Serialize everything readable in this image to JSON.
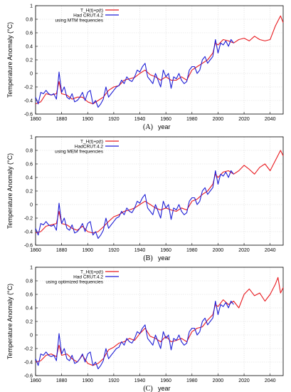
{
  "figure": {
    "panels": [
      {
        "panel_label": "(A)",
        "xlabel": "year",
        "ylabel": "Temperature Anomaly (°C)",
        "legend": {
          "red": "T_H(t)+p(t)",
          "blue": "Had CRUT.4.2",
          "note": "using MTM frequencies"
        }
      },
      {
        "panel_label": "(B)",
        "xlabel": "year",
        "ylabel": "Temperature Anomaly (°C)",
        "legend": {
          "red": "T_H(t)+p(t)",
          "blue": "HadCRUT.4.2",
          "note": "using MEM frequencies"
        }
      },
      {
        "panel_label": "(C)",
        "xlabel": "year",
        "ylabel": "Temperature Anomaly (°C)",
        "legend": {
          "red": "T_H(t)+p(t)",
          "blue": "Had CRUT.4.2",
          "note": "using optimized frequencies"
        }
      }
    ]
  },
  "chart_data": [
    {
      "type": "line",
      "xlabel": "year",
      "ylabel": "Temperature Anomaly (°C)",
      "xlim": [
        1860,
        2050
      ],
      "ylim": [
        -0.6,
        1.0
      ],
      "x_ticks": [
        "1860",
        "1880",
        "1900",
        "1920",
        "1940",
        "1960",
        "1980",
        "2000",
        "2020",
        "2040"
      ],
      "y_ticks": [
        "-0.6",
        "-0.4",
        "-0.2",
        "0",
        "0.2",
        "0.4",
        "0.6",
        "0.8",
        "1"
      ],
      "grid": true,
      "legend_position": "top-left",
      "series": [
        {
          "name": "T_H(t)+p(t)",
          "color": "#e8191e",
          "x": [
            1860,
            1864,
            1868,
            1872,
            1876,
            1878,
            1880,
            1884,
            1888,
            1892,
            1896,
            1900,
            1904,
            1908,
            1912,
            1916,
            1920,
            1924,
            1928,
            1932,
            1936,
            1940,
            1944,
            1948,
            1952,
            1956,
            1960,
            1964,
            1968,
            1972,
            1976,
            1980,
            1984,
            1988,
            1992,
            1996,
            1998,
            2000,
            2004,
            2008,
            2012,
            2016,
            2020,
            2024,
            2028,
            2032,
            2036,
            2040,
            2044,
            2048,
            2050
          ],
          "values": [
            -0.45,
            -0.42,
            -0.3,
            -0.32,
            -0.3,
            -0.12,
            -0.3,
            -0.32,
            -0.38,
            -0.35,
            -0.35,
            -0.42,
            -0.45,
            -0.4,
            -0.35,
            -0.25,
            -0.2,
            -0.18,
            -0.1,
            -0.08,
            -0.06,
            0.0,
            0.05,
            -0.02,
            -0.05,
            -0.1,
            -0.05,
            -0.1,
            -0.1,
            -0.05,
            -0.1,
            0.05,
            0.1,
            0.15,
            0.2,
            0.3,
            0.45,
            0.42,
            0.5,
            0.48,
            0.45,
            0.5,
            0.52,
            0.48,
            0.55,
            0.5,
            0.48,
            0.5,
            0.7,
            0.85,
            0.75
          ]
        },
        {
          "name": "Had CRUT.4.2",
          "color": "#1f1fd6",
          "x": [
            1860,
            1862,
            1864,
            1866,
            1868,
            1870,
            1872,
            1874,
            1876,
            1878,
            1880,
            1882,
            1884,
            1886,
            1888,
            1890,
            1892,
            1894,
            1896,
            1898,
            1900,
            1902,
            1904,
            1906,
            1908,
            1910,
            1912,
            1914,
            1916,
            1918,
            1920,
            1922,
            1924,
            1926,
            1928,
            1930,
            1932,
            1934,
            1936,
            1938,
            1940,
            1942,
            1944,
            1946,
            1948,
            1950,
            1952,
            1954,
            1956,
            1958,
            1960,
            1962,
            1964,
            1966,
            1968,
            1970,
            1972,
            1974,
            1976,
            1978,
            1980,
            1982,
            1984,
            1986,
            1988,
            1990,
            1992,
            1994,
            1996,
            1998,
            2000,
            2002,
            2004,
            2006,
            2008,
            2010,
            2012
          ],
          "values": [
            -0.35,
            -0.45,
            -0.28,
            -0.3,
            -0.25,
            -0.3,
            -0.32,
            -0.3,
            -0.38,
            0.02,
            -0.28,
            -0.2,
            -0.35,
            -0.38,
            -0.3,
            -0.42,
            -0.4,
            -0.35,
            -0.28,
            -0.4,
            -0.28,
            -0.25,
            -0.45,
            -0.4,
            -0.5,
            -0.45,
            -0.38,
            -0.2,
            -0.35,
            -0.3,
            -0.25,
            -0.2,
            -0.18,
            -0.1,
            -0.15,
            -0.05,
            -0.1,
            -0.12,
            -0.05,
            0.05,
            0.02,
            0.1,
            0.15,
            -0.05,
            -0.1,
            -0.15,
            0.0,
            -0.1,
            -0.2,
            0.05,
            -0.05,
            0.0,
            -0.22,
            -0.05,
            -0.08,
            0.0,
            -0.1,
            -0.15,
            -0.12,
            0.05,
            0.1,
            0.1,
            0.0,
            0.05,
            0.2,
            0.25,
            0.15,
            0.2,
            0.25,
            0.5,
            0.3,
            0.45,
            0.42,
            0.48,
            0.4,
            0.5,
            0.45
          ]
        }
      ]
    },
    {
      "type": "line",
      "xlabel": "year",
      "ylabel": "Temperature Anomaly (°C)",
      "xlim": [
        1860,
        2050
      ],
      "ylim": [
        -0.6,
        1.0
      ],
      "x_ticks": [
        "1860",
        "1880",
        "1900",
        "1920",
        "1940",
        "1960",
        "1980",
        "2000",
        "2020",
        "2040"
      ],
      "y_ticks": [
        "-0.6",
        "-0.4",
        "-0.2",
        "0",
        "0.2",
        "0.4",
        "0.6",
        "0.8",
        "1"
      ],
      "grid": true,
      "legend_position": "top-left",
      "series": [
        {
          "name": "T_H(t)+p(t)",
          "color": "#e8191e",
          "x": [
            1860,
            1864,
            1868,
            1872,
            1876,
            1878,
            1880,
            1884,
            1888,
            1892,
            1896,
            1900,
            1904,
            1908,
            1912,
            1916,
            1920,
            1924,
            1928,
            1932,
            1936,
            1940,
            1944,
            1948,
            1952,
            1956,
            1960,
            1964,
            1968,
            1972,
            1976,
            1980,
            1984,
            1988,
            1992,
            1996,
            1998,
            2000,
            2004,
            2008,
            2012,
            2016,
            2020,
            2024,
            2028,
            2032,
            2036,
            2040,
            2044,
            2048,
            2050
          ],
          "values": [
            -0.42,
            -0.4,
            -0.32,
            -0.3,
            -0.28,
            -0.1,
            -0.28,
            -0.3,
            -0.35,
            -0.38,
            -0.32,
            -0.4,
            -0.42,
            -0.4,
            -0.33,
            -0.25,
            -0.18,
            -0.15,
            -0.1,
            -0.08,
            -0.05,
            0.0,
            0.05,
            0.0,
            -0.05,
            -0.08,
            -0.05,
            -0.08,
            -0.1,
            -0.05,
            -0.08,
            0.05,
            0.08,
            0.15,
            0.2,
            0.3,
            0.45,
            0.4,
            0.48,
            0.5,
            0.45,
            0.5,
            0.58,
            0.52,
            0.45,
            0.55,
            0.6,
            0.5,
            0.65,
            0.8,
            0.72
          ]
        },
        {
          "name": "HadCRUT.4.2",
          "color": "#1f1fd6",
          "x": [
            1860,
            1862,
            1864,
            1866,
            1868,
            1870,
            1872,
            1874,
            1876,
            1878,
            1880,
            1882,
            1884,
            1886,
            1888,
            1890,
            1892,
            1894,
            1896,
            1898,
            1900,
            1902,
            1904,
            1906,
            1908,
            1910,
            1912,
            1914,
            1916,
            1918,
            1920,
            1922,
            1924,
            1926,
            1928,
            1930,
            1932,
            1934,
            1936,
            1938,
            1940,
            1942,
            1944,
            1946,
            1948,
            1950,
            1952,
            1954,
            1956,
            1958,
            1960,
            1962,
            1964,
            1966,
            1968,
            1970,
            1972,
            1974,
            1976,
            1978,
            1980,
            1982,
            1984,
            1986,
            1988,
            1990,
            1992,
            1994,
            1996,
            1998,
            2000,
            2002,
            2004,
            2006,
            2008,
            2010,
            2012
          ],
          "values": [
            -0.35,
            -0.45,
            -0.28,
            -0.3,
            -0.25,
            -0.3,
            -0.32,
            -0.3,
            -0.38,
            0.02,
            -0.28,
            -0.2,
            -0.35,
            -0.38,
            -0.3,
            -0.42,
            -0.4,
            -0.35,
            -0.28,
            -0.4,
            -0.28,
            -0.25,
            -0.45,
            -0.4,
            -0.5,
            -0.45,
            -0.38,
            -0.2,
            -0.35,
            -0.3,
            -0.25,
            -0.2,
            -0.18,
            -0.1,
            -0.15,
            -0.05,
            -0.1,
            -0.12,
            -0.05,
            0.05,
            0.02,
            0.1,
            0.15,
            -0.05,
            -0.1,
            -0.15,
            0.0,
            -0.1,
            -0.2,
            0.05,
            -0.05,
            0.0,
            -0.22,
            -0.05,
            -0.08,
            0.0,
            -0.1,
            -0.15,
            -0.12,
            0.05,
            0.1,
            0.1,
            0.0,
            0.05,
            0.2,
            0.25,
            0.15,
            0.2,
            0.25,
            0.5,
            0.3,
            0.45,
            0.42,
            0.48,
            0.4,
            0.5,
            0.45
          ]
        }
      ]
    },
    {
      "type": "line",
      "xlabel": "year",
      "ylabel": "Temperature Anomaly (°C)",
      "xlim": [
        1860,
        2050
      ],
      "ylim": [
        -0.6,
        1.0
      ],
      "x_ticks": [
        "1860",
        "1880",
        "1900",
        "1920",
        "1940",
        "1960",
        "1980",
        "2000",
        "2020",
        "2040"
      ],
      "y_ticks": [
        "-0.6",
        "-0.4",
        "-0.2",
        "0",
        "0.2",
        "0.4",
        "0.6",
        "0.8",
        "1"
      ],
      "grid": true,
      "legend_position": "top-left",
      "series": [
        {
          "name": "T_H(t)+p(t)",
          "color": "#e8191e",
          "x": [
            1860,
            1864,
            1868,
            1872,
            1876,
            1878,
            1880,
            1884,
            1888,
            1892,
            1896,
            1900,
            1904,
            1908,
            1912,
            1916,
            1920,
            1924,
            1928,
            1932,
            1936,
            1940,
            1944,
            1948,
            1952,
            1956,
            1960,
            1964,
            1968,
            1972,
            1976,
            1980,
            1984,
            1988,
            1992,
            1996,
            1998,
            2000,
            2004,
            2008,
            2012,
            2016,
            2020,
            2024,
            2028,
            2032,
            2036,
            2040,
            2044,
            2046,
            2048,
            2050
          ],
          "values": [
            -0.4,
            -0.38,
            -0.3,
            -0.28,
            -0.32,
            -0.15,
            -0.3,
            -0.28,
            -0.35,
            -0.4,
            -0.3,
            -0.42,
            -0.45,
            -0.42,
            -0.35,
            -0.22,
            -0.18,
            -0.12,
            -0.1,
            -0.05,
            -0.08,
            0.02,
            0.1,
            -0.02,
            -0.05,
            -0.1,
            -0.02,
            -0.1,
            -0.08,
            -0.05,
            -0.1,
            0.05,
            0.1,
            0.12,
            0.22,
            0.3,
            0.45,
            0.42,
            0.52,
            0.45,
            0.5,
            0.4,
            0.6,
            0.68,
            0.58,
            0.62,
            0.5,
            0.6,
            0.75,
            0.85,
            0.62,
            0.7
          ]
        },
        {
          "name": "Had CRUT.4.2",
          "color": "#1f1fd6",
          "x": [
            1860,
            1862,
            1864,
            1866,
            1868,
            1870,
            1872,
            1874,
            1876,
            1878,
            1880,
            1882,
            1884,
            1886,
            1888,
            1890,
            1892,
            1894,
            1896,
            1898,
            1900,
            1902,
            1904,
            1906,
            1908,
            1910,
            1912,
            1914,
            1916,
            1918,
            1920,
            1922,
            1924,
            1926,
            1928,
            1930,
            1932,
            1934,
            1936,
            1938,
            1940,
            1942,
            1944,
            1946,
            1948,
            1950,
            1952,
            1954,
            1956,
            1958,
            1960,
            1962,
            1964,
            1966,
            1968,
            1970,
            1972,
            1974,
            1976,
            1978,
            1980,
            1982,
            1984,
            1986,
            1988,
            1990,
            1992,
            1994,
            1996,
            1998,
            2000,
            2002,
            2004,
            2006,
            2008,
            2010,
            2012
          ],
          "values": [
            -0.35,
            -0.45,
            -0.28,
            -0.3,
            -0.25,
            -0.3,
            -0.32,
            -0.3,
            -0.38,
            0.02,
            -0.28,
            -0.2,
            -0.35,
            -0.38,
            -0.3,
            -0.42,
            -0.4,
            -0.35,
            -0.28,
            -0.4,
            -0.28,
            -0.25,
            -0.45,
            -0.4,
            -0.5,
            -0.45,
            -0.38,
            -0.2,
            -0.35,
            -0.3,
            -0.25,
            -0.2,
            -0.18,
            -0.1,
            -0.15,
            -0.05,
            -0.1,
            -0.12,
            -0.05,
            0.05,
            0.02,
            0.1,
            0.15,
            -0.05,
            -0.1,
            -0.15,
            0.0,
            -0.1,
            -0.2,
            0.05,
            -0.05,
            0.0,
            -0.22,
            -0.05,
            -0.08,
            0.0,
            -0.1,
            -0.15,
            -0.12,
            0.05,
            0.1,
            0.1,
            0.0,
            0.05,
            0.2,
            0.25,
            0.15,
            0.2,
            0.25,
            0.5,
            0.3,
            0.45,
            0.42,
            0.48,
            0.4,
            0.5,
            0.45
          ]
        }
      ]
    }
  ]
}
